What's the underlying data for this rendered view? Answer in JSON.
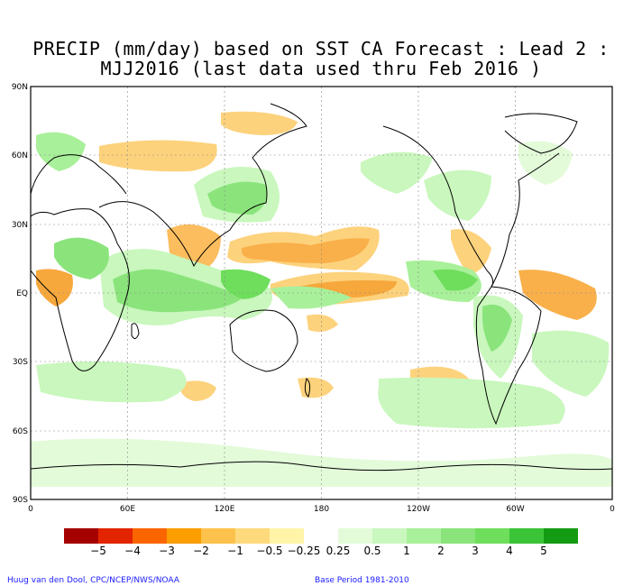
{
  "title": {
    "line1": "PRECIP (mm/day) based on SST CA Forecast : Lead 2 :",
    "line2": "MJJ2016 (last data used thru Feb 2016 )"
  },
  "map": {
    "lat_labels": [
      "90N",
      "60N",
      "30N",
      "EQ",
      "30S",
      "60S",
      "90S"
    ],
    "lon_labels": [
      "0",
      "60E",
      "120E",
      "180",
      "120W",
      "60W",
      "0"
    ],
    "grid": true
  },
  "legend": {
    "colors": [
      "#a50000",
      "#e32400",
      "#fb6500",
      "#fc9d00",
      "#fdc24b",
      "#feda7d",
      "#fff4a8",
      "#ffffff",
      "#e3fbd9",
      "#c9f7bd",
      "#a9f09a",
      "#8ae47b",
      "#6ede5c",
      "#3bc437",
      "#139b13"
    ],
    "labels": [
      "−5",
      "−4",
      "−3",
      "−2",
      "−1",
      "−0.5",
      "−0.25",
      "0.25",
      "0.5",
      "1",
      "2",
      "3",
      "4",
      "5"
    ]
  },
  "footer": {
    "credit": "Huug van den Dool, CPC/NCEP/NWS/NOAA",
    "base_period": "Base Period 1981-2010"
  },
  "colors": {
    "dry_strong": "#f49e23",
    "dry_weak": "#fdd27c",
    "wet_weak": "#c9f7bd",
    "wet_strong": "#6ede5c",
    "footer_text": "#1a1aff"
  }
}
